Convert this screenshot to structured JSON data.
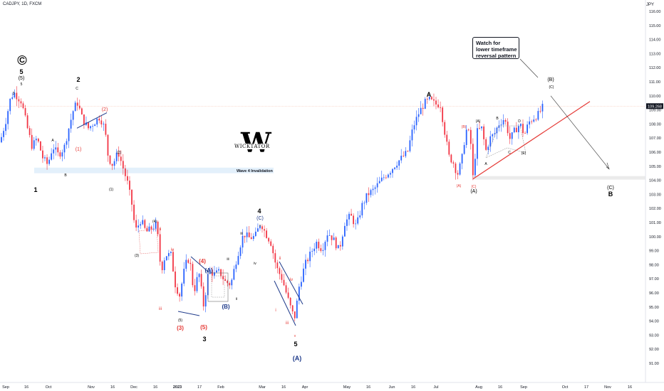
{
  "header": {
    "symbol": "CADJPY, 1D, FXCM",
    "currency": "JPY"
  },
  "callout": {
    "lines": [
      "Watch for",
      "lower timeframe",
      "reversal pattern"
    ]
  },
  "logo": {
    "text": "WICKTATOR",
    "letter": "W"
  },
  "chart_data": {
    "type": "candlestick",
    "yaxis": {
      "ticks": [
        91.0,
        92.0,
        93.0,
        94.0,
        95.0,
        96.0,
        97.0,
        98.0,
        99.0,
        100.0,
        101.0,
        102.0,
        103.0,
        104.0,
        105.0,
        106.0,
        107.0,
        108.0,
        109.0,
        110.0,
        111.0,
        112.0,
        113.0,
        114.0,
        115.0,
        116.0
      ],
      "last_price": 109.268
    },
    "xaxis": {
      "ticks": [
        "Sep",
        "16",
        "Oct",
        "Nov",
        "16",
        "Dec",
        "16",
        "2023",
        "17",
        "Feb",
        "Mar",
        "16",
        "Apr",
        "May",
        "16",
        "Jun",
        "16",
        "Jul",
        "Aug",
        "16",
        "Sep",
        "Oct",
        "17",
        "Nov",
        "16"
      ]
    },
    "ohlc_keypoints": [
      {
        "label": "Sep start",
        "close": 106.8
      },
      {
        "label": "Wave C (5) top",
        "close": 110.2
      },
      {
        "label": "Wave 1 low",
        "close": 104.9
      },
      {
        "label": "Wave 2 high",
        "close": 109.5
      },
      {
        "label": "Wave 3 low",
        "close": 95.0
      },
      {
        "label": "Wave 4 high",
        "close": 101.0
      },
      {
        "label": "Wave 5 low",
        "close": 94.3
      },
      {
        "label": "Wave A high",
        "close": 109.7
      },
      {
        "label": "Wave (A) low",
        "close": 104.1
      },
      {
        "label": "Last",
        "close": 109.27
      }
    ],
    "zones": [
      {
        "label": "Wave 4 Invalidation",
        "low": 104.5,
        "high": 104.9
      }
    ],
    "wave_labels": [
      "C",
      "5",
      "(5)",
      "5",
      "3",
      "1",
      "A",
      "B",
      "2",
      "C",
      "(2)",
      "(1)",
      "(1)",
      "(2)",
      "(4)",
      "(3)",
      "iv",
      "ii",
      "iii",
      "(4)",
      "(A)",
      "(B)",
      "(5)",
      "(3)",
      "(5)",
      "3",
      "4",
      "(C)",
      "v",
      "iii",
      "iv",
      "ii",
      "iii",
      "i",
      "ii",
      "iv",
      "iii",
      "v",
      "5",
      "(A)",
      "A",
      "(B)",
      "(A)",
      "B",
      "D",
      "C",
      "A",
      "(E)",
      "(C)",
      "(A)",
      "(B)",
      "(C)",
      "(C)",
      "B"
    ],
    "annotation": "Wave 4 Invalidation"
  }
}
